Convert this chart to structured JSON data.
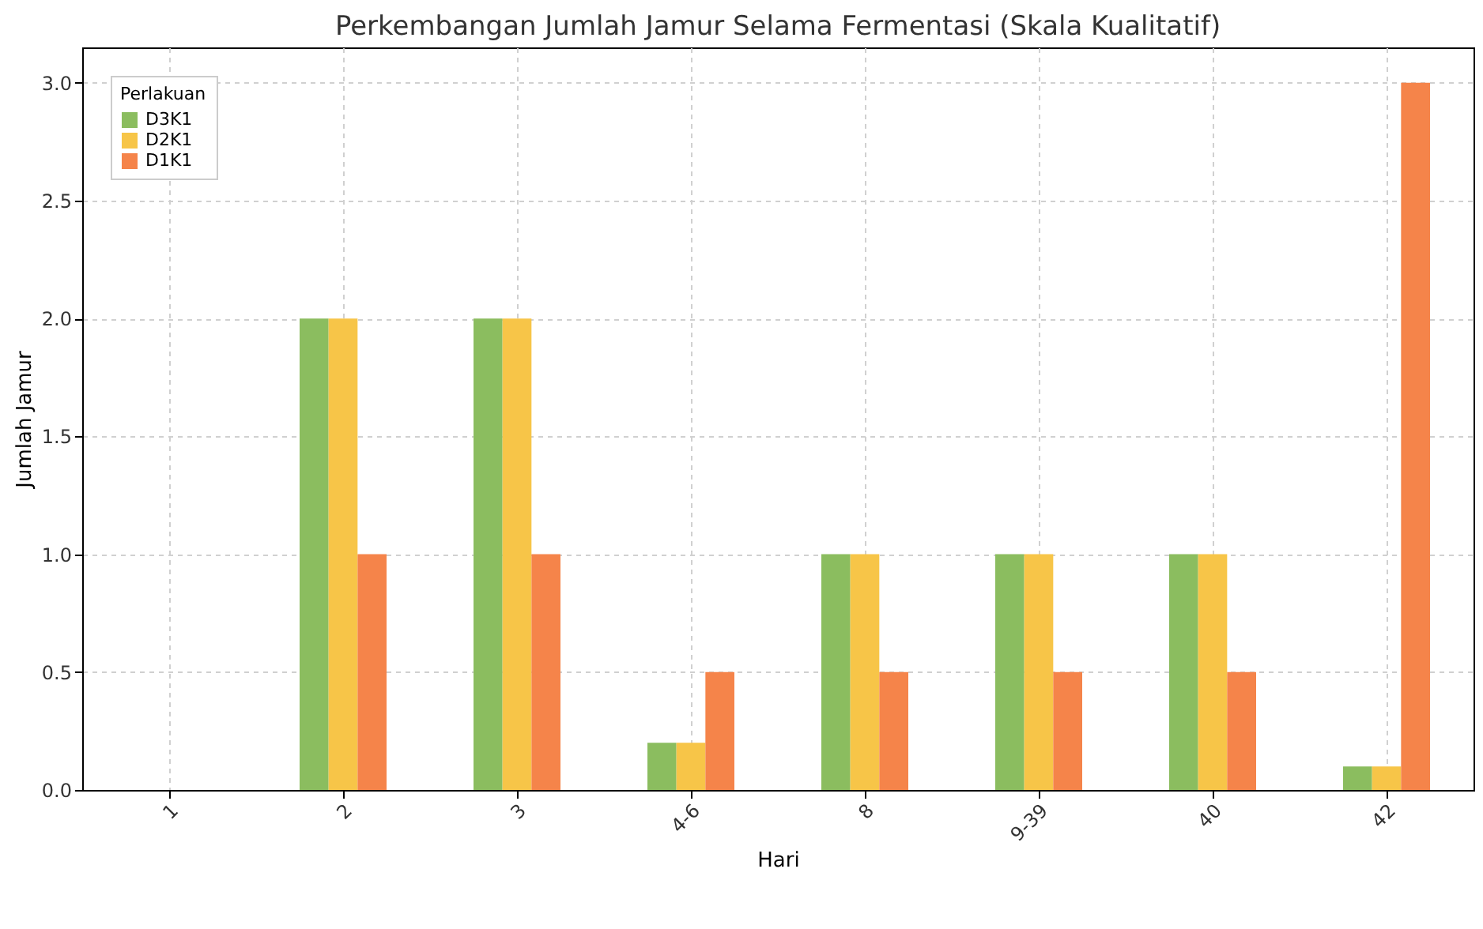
{
  "chart_data": {
    "type": "bar",
    "title": "Perkembangan Jumlah Jamur Selama Fermentasi (Skala Kualitatif)",
    "xlabel": "Hari",
    "ylabel": "Jumlah Jamur",
    "legend_title": "Perlakuan",
    "categories": [
      "1",
      "2",
      "3",
      "4-6",
      "8",
      "9-39",
      "40",
      "42"
    ],
    "series": [
      {
        "name": "D3K1",
        "color": "#8bbd5f",
        "values": [
          0,
          2,
          2,
          0.2,
          1,
          1,
          1,
          0.1
        ]
      },
      {
        "name": "D2K1",
        "color": "#f7c548",
        "values": [
          0,
          2,
          2,
          0.2,
          1,
          1,
          1,
          0.1
        ]
      },
      {
        "name": "D1K1",
        "color": "#f5844a",
        "values": [
          0,
          1,
          1,
          0.5,
          0.5,
          0.5,
          0.5,
          3
        ]
      }
    ],
    "ylim": [
      0,
      3.15
    ],
    "yticks": [
      {
        "value": 0,
        "label": "0.0"
      },
      {
        "value": 0.5,
        "label": "0.5"
      },
      {
        "value": 1,
        "label": "1.0"
      },
      {
        "value": 1.5,
        "label": "1.5"
      },
      {
        "value": 2,
        "label": "2.0"
      },
      {
        "value": 2.5,
        "label": "2.5"
      },
      {
        "value": 3,
        "label": "3.0"
      }
    ],
    "grid": true,
    "legend": "top left"
  }
}
